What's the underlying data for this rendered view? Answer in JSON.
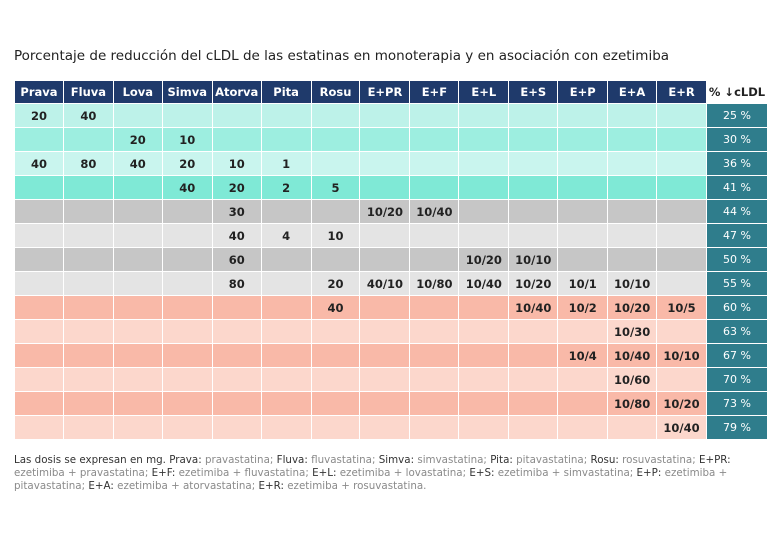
{
  "title": "Porcentaje de reducción del cLDL de las estatinas en monoterapia y en asociación con ezetimiba",
  "table": {
    "header": [
      "Prava",
      "Fluva",
      "Lova",
      "Simva",
      "Atorva",
      "Pita",
      "Rosu",
      "E+PR",
      "E+F",
      "E+L",
      "E+S",
      "E+P",
      "E+A",
      "E+R",
      "% ↓cLDL"
    ],
    "rows": [
      {
        "cells": [
          "20",
          "40",
          null,
          null,
          null,
          null,
          null,
          null,
          null,
          null,
          null,
          null,
          null,
          null
        ],
        "pct": "25 %"
      },
      {
        "cells": [
          null,
          null,
          "20",
          "10",
          null,
          null,
          null,
          null,
          null,
          null,
          null,
          null,
          null,
          null
        ],
        "pct": "30 %"
      },
      {
        "cells": [
          "40",
          "80",
          "40",
          "20",
          "10",
          "1",
          null,
          null,
          null,
          null,
          null,
          null,
          null,
          null
        ],
        "pct": "36 %"
      },
      {
        "cells": [
          null,
          null,
          null,
          "40",
          "20",
          "2",
          "5",
          null,
          null,
          null,
          null,
          null,
          null,
          null
        ],
        "pct": "41 %"
      },
      {
        "cells": [
          null,
          null,
          null,
          null,
          "30",
          null,
          null,
          "10/20",
          "10/40",
          null,
          null,
          null,
          null,
          null
        ],
        "pct": "44 %"
      },
      {
        "cells": [
          null,
          null,
          null,
          null,
          "40",
          "4",
          "10",
          null,
          null,
          null,
          null,
          null,
          null,
          null
        ],
        "pct": "47 %"
      },
      {
        "cells": [
          null,
          null,
          null,
          null,
          "60",
          null,
          null,
          null,
          null,
          "10/20",
          "10/10",
          null,
          null,
          null
        ],
        "pct": "50 %"
      },
      {
        "cells": [
          null,
          null,
          null,
          null,
          "80",
          null,
          "20",
          "40/10",
          "10/80",
          "10/40",
          "10/20",
          "10/1",
          "10/10",
          null
        ],
        "pct": "55 %"
      },
      {
        "cells": [
          null,
          null,
          null,
          null,
          null,
          null,
          "40",
          null,
          null,
          null,
          "10/40",
          "10/2",
          "10/20",
          "10/5"
        ],
        "pct": "60 %"
      },
      {
        "cells": [
          null,
          null,
          null,
          null,
          null,
          null,
          null,
          null,
          null,
          null,
          null,
          null,
          "10/30",
          null
        ],
        "pct": "63 %"
      },
      {
        "cells": [
          null,
          null,
          null,
          null,
          null,
          null,
          null,
          null,
          null,
          null,
          null,
          "10/4",
          "10/40",
          "10/10"
        ],
        "pct": "67 %"
      },
      {
        "cells": [
          null,
          null,
          null,
          null,
          null,
          null,
          null,
          null,
          null,
          null,
          null,
          null,
          "10/60",
          null
        ],
        "pct": "70 %"
      },
      {
        "cells": [
          null,
          null,
          null,
          null,
          null,
          null,
          null,
          null,
          null,
          null,
          null,
          null,
          "10/80",
          "10/20"
        ],
        "pct": "73 %"
      },
      {
        "cells": [
          null,
          null,
          null,
          null,
          null,
          null,
          null,
          null,
          null,
          null,
          null,
          null,
          null,
          "10/40"
        ],
        "pct": "79 %"
      }
    ]
  },
  "footnote": {
    "intro": "Las dosis se expresan en mg.",
    "items": [
      {
        "abbr": "Prava:",
        "def": "pravastatina;"
      },
      {
        "abbr": "Fluva:",
        "def": "fluvastatina;"
      },
      {
        "abbr": "Simva:",
        "def": "simvastatina;"
      },
      {
        "abbr": "Pita:",
        "def": "pitavastatina;"
      },
      {
        "abbr": "Rosu:",
        "def": "rosuvastatina;"
      },
      {
        "abbr": "E+PR:",
        "def": "ezetimiba + pravastatina;"
      },
      {
        "abbr": "E+F:",
        "def": "ezetimiba + fluvastatina;"
      },
      {
        "abbr": "E+L:",
        "def": "ezetimiba + lovastatina;"
      },
      {
        "abbr": "E+S:",
        "def": "ezetimiba + simvastatina;"
      },
      {
        "abbr": "E+P:",
        "def": "ezetimiba + pitavastatina;"
      },
      {
        "abbr": "E+A:",
        "def": "ezetimiba + atorvastatina;"
      },
      {
        "abbr": "E+R:",
        "def": "ezetimiba + rosuvastatina."
      }
    ]
  }
}
